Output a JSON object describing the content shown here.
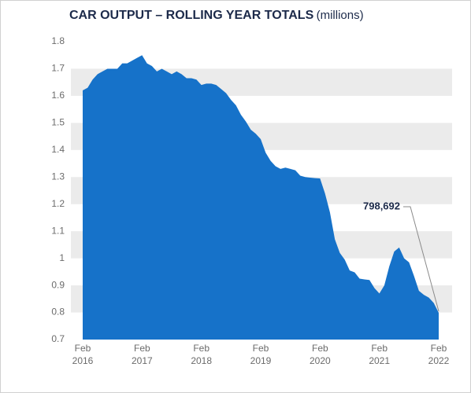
{
  "chart_data": {
    "type": "area",
    "title": "CAR OUTPUT – ROLLING YEAR TOTALS",
    "unit": "(millions)",
    "categories": [
      "Feb 2016",
      null,
      null,
      null,
      null,
      null,
      null,
      null,
      null,
      null,
      null,
      null,
      "Feb 2017",
      null,
      null,
      null,
      null,
      null,
      null,
      null,
      null,
      null,
      null,
      null,
      "Feb 2018",
      null,
      null,
      null,
      null,
      null,
      null,
      null,
      null,
      null,
      null,
      null,
      "Feb 2019",
      null,
      null,
      null,
      null,
      null,
      null,
      null,
      null,
      null,
      null,
      null,
      "Feb 2020",
      null,
      null,
      null,
      null,
      null,
      null,
      null,
      null,
      null,
      null,
      null,
      "Feb 2021",
      null,
      null,
      null,
      null,
      null,
      null,
      null,
      null,
      null,
      null,
      null,
      "Feb 2022"
    ],
    "values": [
      1.62,
      1.63,
      1.66,
      1.68,
      1.69,
      1.7,
      1.7,
      1.7,
      1.72,
      1.72,
      1.73,
      1.74,
      1.75,
      1.72,
      1.71,
      1.69,
      1.7,
      1.69,
      1.68,
      1.69,
      1.68,
      1.665,
      1.665,
      1.66,
      1.64,
      1.645,
      1.645,
      1.64,
      1.625,
      1.61,
      1.585,
      1.565,
      1.53,
      1.505,
      1.475,
      1.46,
      1.44,
      1.39,
      1.36,
      1.34,
      1.33,
      1.335,
      1.33,
      1.325,
      1.305,
      1.3,
      1.298,
      1.296,
      1.295,
      1.24,
      1.17,
      1.07,
      1.02,
      0.995,
      0.955,
      0.948,
      0.925,
      0.922,
      0.92,
      0.89,
      0.87,
      0.9,
      0.97,
      1.025,
      1.04,
      1.0,
      0.985,
      0.935,
      0.88,
      0.865,
      0.855,
      0.835,
      0.798692
    ],
    "color": "#1672c9",
    "annotation": {
      "text": "798,692"
    },
    "ylim": [
      0.7,
      1.8
    ],
    "yticks": [
      0.7,
      0.8,
      0.9,
      1,
      1.1,
      1.2,
      1.3,
      1.4,
      1.5,
      1.6,
      1.7,
      1.8
    ],
    "grid": true
  }
}
